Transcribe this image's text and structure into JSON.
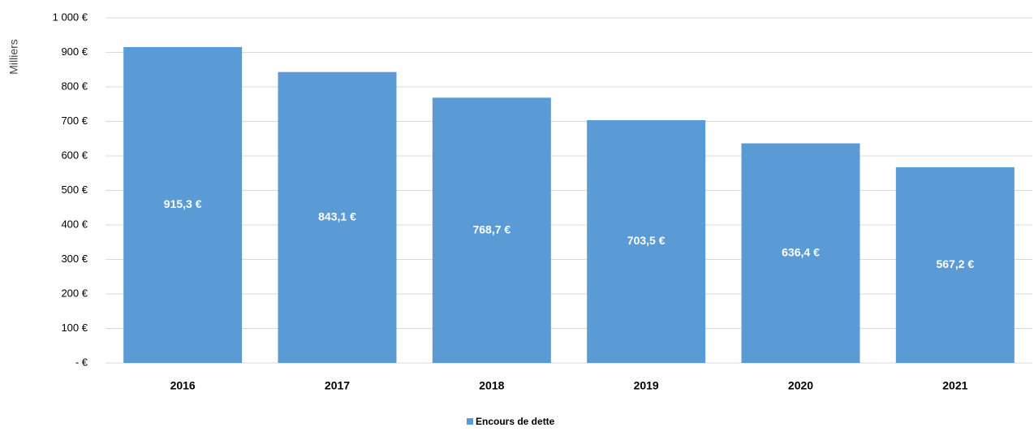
{
  "chart_data": {
    "type": "bar",
    "y_axis_label": "Milliers",
    "categories": [
      "2016",
      "2017",
      "2018",
      "2019",
      "2020",
      "2021"
    ],
    "series": [
      {
        "name": "Encours de dette",
        "color": "#5b9bd5",
        "values": [
          915.3,
          843.1,
          768.7,
          703.5,
          636.4,
          567.2
        ],
        "value_labels": [
          "915,3 €",
          "843,1 €",
          "768,7 €",
          "703,5 €",
          "636,4 €",
          "567,2 €"
        ]
      }
    ],
    "ylim": [
      0,
      1000
    ],
    "yticks": [
      {
        "value": 0,
        "label": "-  €"
      },
      {
        "value": 100,
        "label": "100 €"
      },
      {
        "value": 200,
        "label": "200 €"
      },
      {
        "value": 300,
        "label": "300 €"
      },
      {
        "value": 400,
        "label": "400 €"
      },
      {
        "value": 500,
        "label": "500 €"
      },
      {
        "value": 600,
        "label": "600 €"
      },
      {
        "value": 700,
        "label": "700 €"
      },
      {
        "value": 800,
        "label": "800 €"
      },
      {
        "value": 900,
        "label": "900 €"
      },
      {
        "value": 1000,
        "label": "1 000 €"
      }
    ],
    "grid": true,
    "legend": "bottom"
  }
}
